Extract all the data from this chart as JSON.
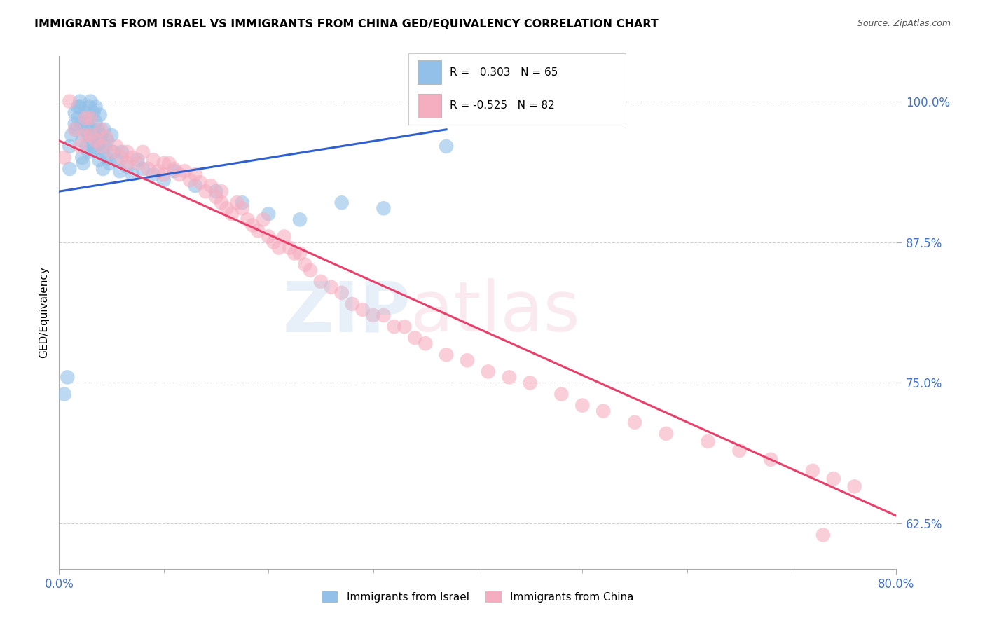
{
  "title": "IMMIGRANTS FROM ISRAEL VS IMMIGRANTS FROM CHINA GED/EQUIVALENCY CORRELATION CHART",
  "source": "Source: ZipAtlas.com",
  "ylabel": "GED/Equivalency",
  "yticks": [
    0.625,
    0.75,
    0.875,
    1.0
  ],
  "ytick_labels": [
    "62.5%",
    "75.0%",
    "87.5%",
    "100.0%"
  ],
  "xlim": [
    0.0,
    0.8
  ],
  "ylim": [
    0.585,
    1.04
  ],
  "israel_R": 0.303,
  "israel_N": 65,
  "china_R": -0.525,
  "china_N": 82,
  "israel_color": "#92c0e8",
  "china_color": "#f5aec0",
  "israel_line_color": "#3060d0",
  "china_line_color": "#e8406a",
  "background_color": "#ffffff",
  "israel_scatter_x": [
    0.005,
    0.008,
    0.01,
    0.01,
    0.012,
    0.015,
    0.015,
    0.016,
    0.018,
    0.018,
    0.02,
    0.02,
    0.021,
    0.022,
    0.022,
    0.023,
    0.025,
    0.025,
    0.026,
    0.027,
    0.028,
    0.028,
    0.029,
    0.03,
    0.03,
    0.031,
    0.032,
    0.033,
    0.033,
    0.034,
    0.035,
    0.035,
    0.036,
    0.037,
    0.038,
    0.038,
    0.039,
    0.04,
    0.041,
    0.042,
    0.043,
    0.044,
    0.045,
    0.046,
    0.048,
    0.05,
    0.052,
    0.055,
    0.058,
    0.06,
    0.065,
    0.07,
    0.075,
    0.08,
    0.09,
    0.1,
    0.11,
    0.13,
    0.15,
    0.175,
    0.2,
    0.23,
    0.27,
    0.31,
    0.37
  ],
  "israel_scatter_y": [
    0.74,
    0.755,
    0.96,
    0.94,
    0.97,
    0.99,
    0.98,
    0.975,
    0.985,
    0.995,
    1.0,
    0.995,
    0.98,
    0.965,
    0.95,
    0.945,
    0.99,
    0.975,
    0.96,
    0.98,
    0.97,
    0.955,
    0.995,
    1.0,
    0.985,
    0.975,
    0.96,
    0.99,
    0.97,
    0.958,
    0.995,
    0.982,
    0.968,
    0.975,
    0.962,
    0.948,
    0.988,
    0.97,
    0.955,
    0.94,
    0.975,
    0.96,
    0.95,
    0.965,
    0.945,
    0.97,
    0.955,
    0.948,
    0.938,
    0.955,
    0.942,
    0.935,
    0.948,
    0.94,
    0.935,
    0.93,
    0.938,
    0.925,
    0.92,
    0.91,
    0.9,
    0.895,
    0.91,
    0.905,
    0.96
  ],
  "china_scatter_x": [
    0.005,
    0.01,
    0.015,
    0.02,
    0.025,
    0.025,
    0.03,
    0.03,
    0.035,
    0.04,
    0.04,
    0.045,
    0.05,
    0.055,
    0.06,
    0.065,
    0.065,
    0.07,
    0.075,
    0.08,
    0.085,
    0.09,
    0.095,
    0.1,
    0.1,
    0.105,
    0.11,
    0.115,
    0.12,
    0.125,
    0.13,
    0.135,
    0.14,
    0.145,
    0.15,
    0.155,
    0.155,
    0.16,
    0.165,
    0.17,
    0.175,
    0.18,
    0.185,
    0.19,
    0.195,
    0.2,
    0.205,
    0.21,
    0.215,
    0.22,
    0.225,
    0.23,
    0.235,
    0.24,
    0.25,
    0.26,
    0.27,
    0.28,
    0.29,
    0.3,
    0.31,
    0.32,
    0.33,
    0.34,
    0.35,
    0.37,
    0.39,
    0.41,
    0.43,
    0.45,
    0.48,
    0.5,
    0.52,
    0.55,
    0.58,
    0.62,
    0.65,
    0.68,
    0.72,
    0.74,
    0.76,
    0.73
  ],
  "china_scatter_y": [
    0.95,
    1.0,
    0.975,
    0.96,
    0.985,
    0.97,
    0.985,
    0.97,
    0.965,
    0.975,
    0.96,
    0.968,
    0.955,
    0.96,
    0.95,
    0.955,
    0.945,
    0.95,
    0.945,
    0.955,
    0.94,
    0.948,
    0.938,
    0.945,
    0.935,
    0.945,
    0.94,
    0.935,
    0.938,
    0.93,
    0.935,
    0.928,
    0.92,
    0.925,
    0.915,
    0.92,
    0.91,
    0.905,
    0.9,
    0.91,
    0.905,
    0.895,
    0.89,
    0.885,
    0.895,
    0.88,
    0.875,
    0.87,
    0.88,
    0.87,
    0.865,
    0.865,
    0.855,
    0.85,
    0.84,
    0.835,
    0.83,
    0.82,
    0.815,
    0.81,
    0.81,
    0.8,
    0.8,
    0.79,
    0.785,
    0.775,
    0.77,
    0.76,
    0.755,
    0.75,
    0.74,
    0.73,
    0.725,
    0.715,
    0.705,
    0.698,
    0.69,
    0.682,
    0.672,
    0.665,
    0.658,
    0.615
  ],
  "israel_line_x": [
    0.0,
    0.37
  ],
  "israel_line_y": [
    0.92,
    0.975
  ],
  "china_line_x": [
    0.0,
    0.8
  ],
  "china_line_y": [
    0.965,
    0.632
  ]
}
